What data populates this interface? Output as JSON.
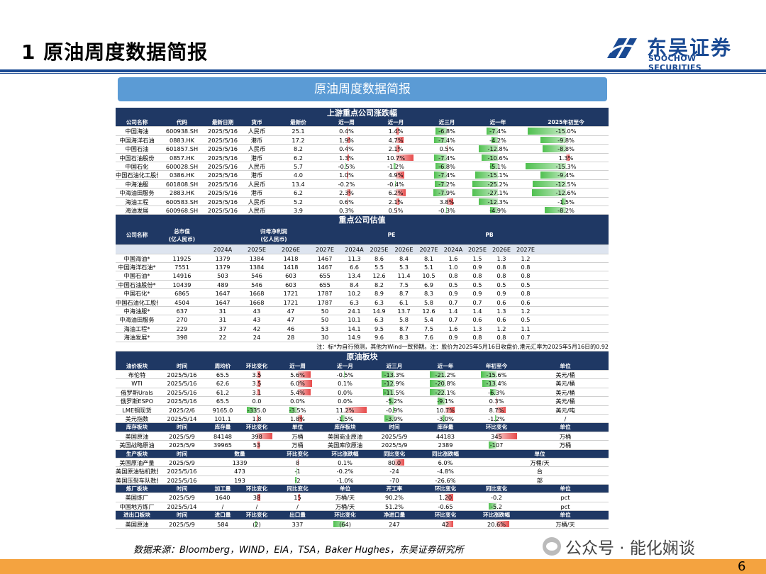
{
  "page_title": "1 原油周度数据简报",
  "logo": {
    "cn": "东吴证券",
    "en": "SOOCHOW SECURITIES"
  },
  "banner": "原油周度数据简报",
  "s1": {
    "title": "上游重点公司涨跌幅",
    "headers": [
      "公司名称",
      "代码",
      "最新日期",
      "货币",
      "最新价",
      "近一周",
      "近一月",
      "近三月",
      "近一年",
      "2025年初至今"
    ],
    "rows": [
      [
        "中国海油",
        "600938.SH",
        "2025/5/16",
        "人民币",
        "25.1",
        "0.4%",
        "1.4%",
        "-6.8%",
        "-7.4%",
        "-15.0%"
      ],
      [
        "中国海洋石油",
        "0883.HK",
        "2025/5/16",
        "港币",
        "17.2",
        "1.9%",
        "4.7%",
        "-7.4%",
        "-4.2%",
        "-9.8%"
      ],
      [
        "中国石油",
        "601857.SH",
        "2025/5/16",
        "人民币",
        "8.2",
        "0.4%",
        "2.1%",
        "0.5%",
        "-12.8%",
        "-8.8%"
      ],
      [
        "中国石油股份",
        "0857.HK",
        "2025/5/16",
        "港币",
        "6.2",
        "1.3%",
        "10.7%",
        "-7.4%",
        "-10.6%",
        "1.3%"
      ],
      [
        "中国石化",
        "600028.SH",
        "2025/5/16",
        "人民币",
        "5.7",
        "-0.5%",
        "-1.2%",
        "-6.8%",
        "-5.1%",
        "-15.3%"
      ],
      [
        "中国石油化工股份",
        "0386.HK",
        "2025/5/16",
        "港币",
        "4.0",
        "1.0%",
        "4.9%",
        "-7.4%",
        "-15.1%",
        "-9.4%"
      ],
      [
        "中海油服",
        "601808.SH",
        "2025/5/16",
        "人民币",
        "13.4",
        "-0.2%",
        "-0.4%",
        "-7.2%",
        "-25.2%",
        "-12.5%"
      ],
      [
        "中海油田服务",
        "2883.HK",
        "2025/5/16",
        "港币",
        "6.2",
        "2.3%",
        "6.2%",
        "-7.9%",
        "-27.1%",
        "-12.6%"
      ],
      [
        "海油工程",
        "600583.SH",
        "2025/5/16",
        "人民币",
        "5.2",
        "0.6%",
        "2.1%",
        "3.8%",
        "-12.3%",
        "-1.5%"
      ],
      [
        "海油发展",
        "600968.SH",
        "2025/5/16",
        "人民币",
        "3.9",
        "0.3%",
        "0.5%",
        "-0.3%",
        "-4.9%",
        "-8.2%"
      ]
    ],
    "bars": [
      [
        null,
        null,
        null,
        null,
        null,
        0.03,
        0.1,
        -0.45,
        -0.45,
        -0.9
      ],
      [
        null,
        null,
        null,
        null,
        null,
        0.12,
        0.3,
        -0.5,
        -0.25,
        -0.6
      ],
      [
        null,
        null,
        null,
        null,
        null,
        0.03,
        0.15,
        0.03,
        -0.75,
        -0.55
      ],
      [
        null,
        null,
        null,
        null,
        null,
        0.1,
        0.7,
        -0.5,
        -0.65,
        0.08
      ],
      [
        null,
        null,
        null,
        null,
        null,
        -0.03,
        -0.08,
        -0.45,
        -0.3,
        -0.95
      ],
      [
        null,
        null,
        null,
        null,
        null,
        0.07,
        0.32,
        -0.5,
        -0.9,
        -0.6
      ],
      [
        null,
        null,
        null,
        null,
        null,
        -0.02,
        -0.03,
        -0.48,
        -1,
        -0.78
      ],
      [
        null,
        null,
        null,
        null,
        null,
        0.15,
        0.4,
        -0.52,
        -1,
        -0.8
      ],
      [
        null,
        null,
        null,
        null,
        null,
        0.04,
        0.15,
        0.25,
        -0.75,
        -0.1
      ],
      [
        null,
        null,
        null,
        null,
        null,
        0.02,
        0.04,
        -0.02,
        -0.3,
        -0.5
      ]
    ]
  },
  "s2": {
    "title": "重点公司估值",
    "h_name": "公司名称",
    "h_mcap": "总市值\n(亿人民币)",
    "h_np": "归母净利润\n(亿人民币)",
    "h_pe": "PE",
    "h_pb": "PB",
    "years_np": [
      "2024A",
      "2025E",
      "2026E",
      "2027E"
    ],
    "years_pe": [
      "2024A",
      "2025E",
      "2026E",
      "2027E"
    ],
    "years_pb": [
      "2024A",
      "2025E",
      "2026E",
      "2027E"
    ],
    "rows": [
      [
        "中国海油*",
        "11925",
        "1379",
        "1384",
        "1418",
        "1467",
        "11.3",
        "8.6",
        "8.4",
        "8.1",
        "1.6",
        "1.5",
        "1.3",
        "1.2"
      ],
      [
        "中国海洋石油*",
        "7551",
        "1379",
        "1384",
        "1418",
        "1467",
        "6.6",
        "5.5",
        "5.3",
        "5.1",
        "1.0",
        "0.9",
        "0.8",
        "0.8"
      ],
      [
        "中国石油*",
        "14916",
        "503",
        "546",
        "603",
        "655",
        "13.4",
        "12.6",
        "11.4",
        "10.5",
        "0.8",
        "0.8",
        "0.8",
        "0.8"
      ],
      [
        "中国石油股份*",
        "10439",
        "489",
        "546",
        "603",
        "655",
        "8.4",
        "8.2",
        "7.5",
        "6.9",
        "0.5",
        "0.5",
        "0.5",
        "0.5"
      ],
      [
        "中国石化*",
        "6865",
        "1647",
        "1668",
        "1721",
        "1787",
        "10.2",
        "8.9",
        "8.7",
        "8.3",
        "0.9",
        "0.9",
        "0.9",
        "0.8"
      ],
      [
        "中国石油化工股份*",
        "4504",
        "1647",
        "1668",
        "1721",
        "1787",
        "6.3",
        "6.3",
        "6.1",
        "5.8",
        "0.7",
        "0.7",
        "0.6",
        "0.6"
      ],
      [
        "中海油服*",
        "637",
        "31",
        "43",
        "47",
        "50",
        "24.1",
        "14.9",
        "13.7",
        "12.6",
        "1.4",
        "1.4",
        "1.3",
        "1.2"
      ],
      [
        "中海油田服务",
        "270",
        "31",
        "43",
        "47",
        "50",
        "10.1",
        "6.3",
        "5.8",
        "5.4",
        "0.7",
        "0.6",
        "0.6",
        "0.5"
      ],
      [
        "海油工程*",
        "229",
        "37",
        "42",
        "46",
        "53",
        "14.1",
        "9.5",
        "8.7",
        "7.5",
        "1.6",
        "1.3",
        "1.2",
        "1.1"
      ],
      [
        "海油发展*",
        "398",
        "22",
        "24",
        "28",
        "30",
        "14.9",
        "9.6",
        "8.3",
        "7.6",
        "0.9",
        "0.8",
        "0.8",
        "0.7"
      ]
    ],
    "note": "注：标*为自行预测，其他为Wind一致预期。注：股价为2025年5月16日收盘价,港元汇率为2025年5月16日的0.92"
  },
  "s3": {
    "title": "原油板块",
    "price_hdr": [
      "油价板块",
      "时间",
      "周均价",
      "环比变化",
      "近一周",
      "近一月",
      "近三月",
      "近一年",
      "年初至今",
      "单位"
    ],
    "price_rows": [
      [
        "布伦特",
        "2025/5/16",
        "65.5",
        "3.5",
        "5.6%",
        "-0.5%",
        "-13.3%",
        "-21.2%",
        "-15.6%",
        "美元/桶"
      ],
      [
        "WTI",
        "2025/5/16",
        "62.6",
        "3.5",
        "6.0%",
        "0.1%",
        "-12.9%",
        "-20.8%",
        "-13.4%",
        "美元/桶"
      ],
      [
        "俄罗斯Urals",
        "2025/5/16",
        "61.2",
        "3.1",
        "5.4%",
        "0.0%",
        "-11.5%",
        "-22.1%",
        "-6.3%",
        "美元/桶"
      ],
      [
        "俄罗斯ESPO",
        "2025/5/16",
        "65.5",
        "0.0",
        "0.0%",
        "0.0%",
        "-5.2%",
        "-9.1%",
        "0.3%",
        "美元/桶"
      ],
      [
        "LME铜现货",
        "2025/2/6",
        "9165.0",
        "-335.0",
        "-3.5%",
        "11.2%",
        "-0.9%",
        "10.7%",
        "8.7%",
        "美元/吨"
      ],
      [
        "美元指数",
        "2025/5/14",
        "101.1",
        "1.8",
        "1.8%",
        "-1.5%",
        "-3.9%",
        "-3.0%",
        "-1.2%",
        "/"
      ]
    ],
    "price_bars": [
      [
        0,
        0,
        0,
        0.2,
        0.55,
        -0.05,
        -0.5,
        -0.6,
        -0.6,
        0
      ],
      [
        0,
        0,
        0,
        0.2,
        0.6,
        0.02,
        -0.5,
        -0.6,
        -0.55,
        0
      ],
      [
        0,
        0,
        0,
        0.18,
        0.55,
        0,
        -0.45,
        -0.6,
        -0.25,
        0
      ],
      [
        0,
        0,
        0,
        0,
        0,
        0,
        -0.2,
        -0.3,
        0.02,
        0
      ],
      [
        0,
        0,
        0,
        -0.6,
        -0.35,
        0.9,
        -0.05,
        0.35,
        0.35,
        0
      ],
      [
        0,
        0,
        0,
        0.1,
        0.2,
        -0.15,
        -0.4,
        -0.1,
        -0.05,
        0
      ]
    ],
    "inv_hdr": [
      "库存板块",
      "时间",
      "库存量",
      "环比变化",
      "单位",
      "库存板块",
      "时间",
      "库存量",
      "环比变化",
      "单位"
    ],
    "inv_rows": [
      [
        "美国原油",
        "2025/5/9",
        "84148",
        "398",
        "万桶",
        "美国商业原油",
        "2025/5/9",
        "44183",
        "345",
        "万桶"
      ],
      [
        "美国战略原油",
        "2025/5/9",
        "39965",
        "53",
        "万桶",
        "美国库欣原油",
        "2025/5/9",
        "2389",
        "-107",
        "万桶"
      ]
    ],
    "prod_hdr": [
      "生产板块",
      "时间",
      "数量",
      "环比变化",
      "环比涨跌幅",
      "同比变化",
      "同比涨跌幅",
      "单位"
    ],
    "prod_rows": [
      [
        "美国原油产量",
        "2025/5/9",
        "1339",
        "8",
        "0.1%",
        "80.0",
        "6.0%",
        "万桶/天"
      ],
      [
        "美国原油钻机数量",
        "2025/5/16",
        "473",
        "-1",
        "-0.2%",
        "-24",
        "-4.8%",
        "台"
      ],
      [
        "美国压裂车队数量",
        "2025/5/16",
        "193",
        "-2",
        "-1.0%",
        "-70",
        "-26.6%",
        "部"
      ]
    ],
    "ref_hdr": [
      "炼厂板块",
      "时间",
      "加工量",
      "环比变化",
      "同比变化",
      "单位",
      "开工率",
      "环比变化",
      "同比变化",
      "单位"
    ],
    "ref_rows": [
      [
        "美国炼厂",
        "2025/5/9",
        "1640",
        "38",
        "15",
        "万桶/天",
        "90.2%",
        "1.20",
        "-0.2",
        "pct"
      ],
      [
        "中国地方炼厂",
        "2025/5/14",
        "/",
        "/",
        "/",
        "万桶/天",
        "51.2%",
        "-0.65",
        "-5.2",
        "pct"
      ]
    ],
    "imp_hdr": [
      "进出口板块",
      "时间",
      "进口量",
      "环比变化",
      "出口量",
      "环比变化",
      "净进口量",
      "环比变化",
      "环比涨跌幅",
      "单位"
    ],
    "imp_rows": [
      [
        "美国原油",
        "2025/5/9",
        "584",
        "(2)",
        "337",
        "(64)",
        "247",
        "42",
        "20.6%",
        "万桶/天"
      ]
    ]
  },
  "source": "数据来源：Bloomberg，WIND，EIA，TSA，Baker Hughes，东吴证券研究所",
  "watermark": "公众号 · 能化娴谈",
  "page_number": "6"
}
